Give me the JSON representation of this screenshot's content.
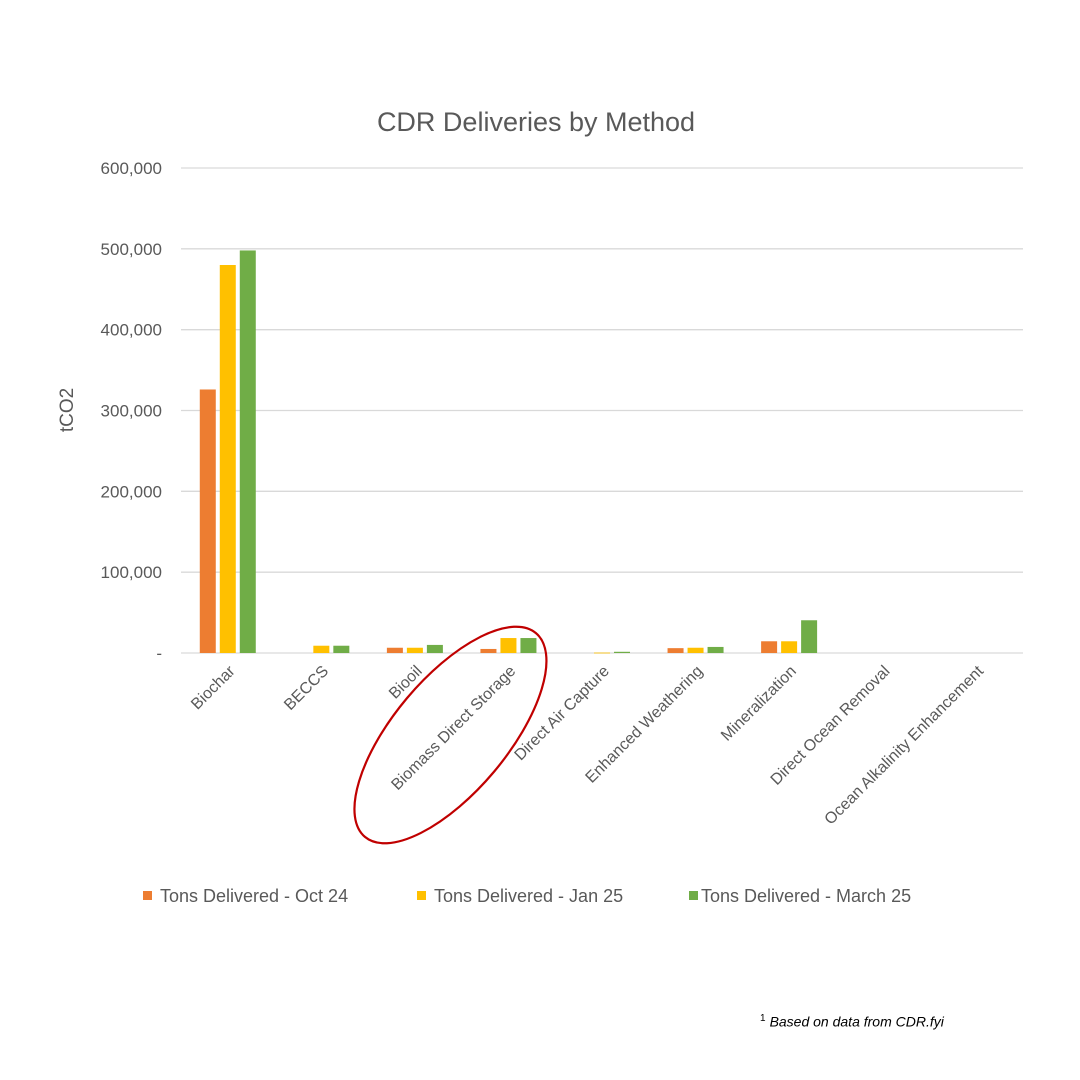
{
  "chart_data": {
    "type": "bar",
    "title": "CDR Deliveries by Method",
    "ylabel": "tCO2",
    "xlabel": "",
    "ylim": [
      0,
      600000
    ],
    "yticks": [
      0,
      100000,
      200000,
      300000,
      400000,
      500000,
      600000
    ],
    "ytick_labels": [
      "-",
      "100,000",
      "200,000",
      "300,000",
      "400,000",
      "500,000",
      "600,000"
    ],
    "grid": true,
    "legend_position": "bottom",
    "categories": [
      "Biochar",
      "BECCS",
      "Biooil",
      "Biomass Direct Storage",
      "Direct Air Capture",
      "Enhanced Weathering",
      "Mineralization",
      "Direct Ocean Removal",
      "Ocean Alkalinity Enhancement"
    ],
    "series": [
      {
        "name": "Tons Delivered - Oct 24",
        "color": "#ED7D31",
        "values": [
          326000,
          0,
          6500,
          5000,
          0,
          6000,
          14500,
          0,
          0
        ]
      },
      {
        "name": "Tons Delivered - Jan 25",
        "color": "#FFC000",
        "values": [
          480000,
          9000,
          6500,
          18500,
          500,
          6500,
          14500,
          0,
          0
        ]
      },
      {
        "name": "Tons Delivered - March 25",
        "color": "#70AD47",
        "values": [
          498000,
          9000,
          10000,
          18500,
          1500,
          7500,
          40500,
          0,
          0
        ]
      }
    ],
    "annotations": [
      {
        "type": "ellipse",
        "target": "Biomass Direct Storage",
        "color": "#C00000"
      }
    ]
  },
  "footnote": {
    "marker": "1",
    "text": "Based on data from CDR.fyi"
  }
}
